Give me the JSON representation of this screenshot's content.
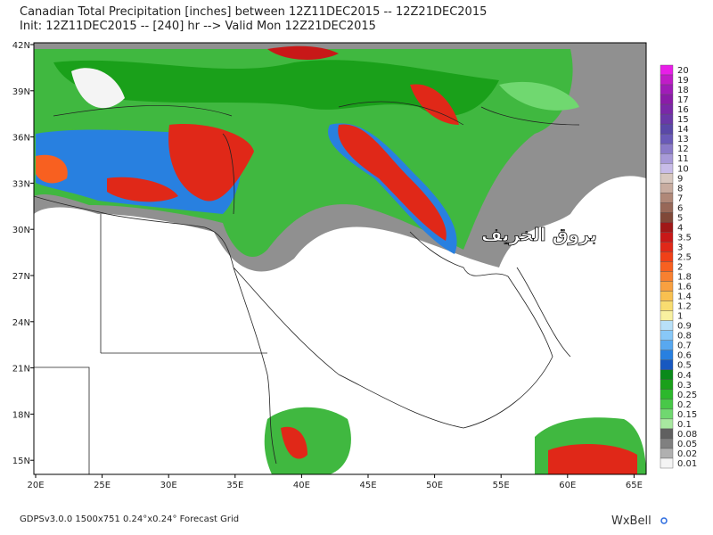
{
  "header": {
    "line1": "Canadian Total Precipitation [inches] between 12Z11DEC2015 -- 12Z21DEC2015",
    "line2": "Init: 12Z11DEC2015 -- [240] hr --> Valid Mon 12Z21DEC2015"
  },
  "map": {
    "lat_labels": [
      "42N",
      "39N",
      "36N",
      "33N",
      "30N",
      "27N",
      "24N",
      "21N",
      "18N",
      "15N"
    ],
    "lon_labels": [
      "20E",
      "25E",
      "30E",
      "35E",
      "40E",
      "45E",
      "50E",
      "55E",
      "60E",
      "65E"
    ],
    "watermark": "بروق الخريف"
  },
  "colorbar": {
    "levels": [
      20,
      19,
      18,
      17,
      16,
      15,
      14,
      13,
      12,
      11,
      10,
      9,
      8,
      7,
      6,
      5,
      4,
      3.5,
      3,
      2.5,
      2,
      1.8,
      1.6,
      1.4,
      1.2,
      1,
      0.9,
      0.8,
      0.7,
      0.6,
      0.5,
      0.4,
      0.3,
      0.25,
      0.2,
      0.15,
      0.1,
      0.08,
      0.05,
      0.02,
      0.01
    ],
    "colors": [
      "#e81ee8",
      "#c01cc8",
      "#a01cb8",
      "#8a1ca8",
      "#7a28a8",
      "#6a38a8",
      "#5a48a8",
      "#6a5ab8",
      "#8a7ac8",
      "#a89ad8",
      "#c8bce8",
      "#d8c8c0",
      "#c8aca0",
      "#b08878",
      "#986858",
      "#804838",
      "#a01818",
      "#c81818",
      "#e02818",
      "#f04018",
      "#f86020",
      "#f88030",
      "#f8a040",
      "#f8c050",
      "#f8dc70",
      "#f8f0a0",
      "#b8e0f8",
      "#88c8f8",
      "#58a8f0",
      "#2880e0",
      "#1858c0",
      "#0a8a1a",
      "#1aa01a",
      "#2cb82c",
      "#48c848",
      "#70d870",
      "#a8e8a0",
      "#606060",
      "#808080",
      "#b0b0b0",
      "#f4f4f4"
    ]
  },
  "footer": {
    "left": "GDPSv3.0.0 1500x751 0.24°x0.24° Forecast Grid",
    "logo": "WxBell"
  }
}
